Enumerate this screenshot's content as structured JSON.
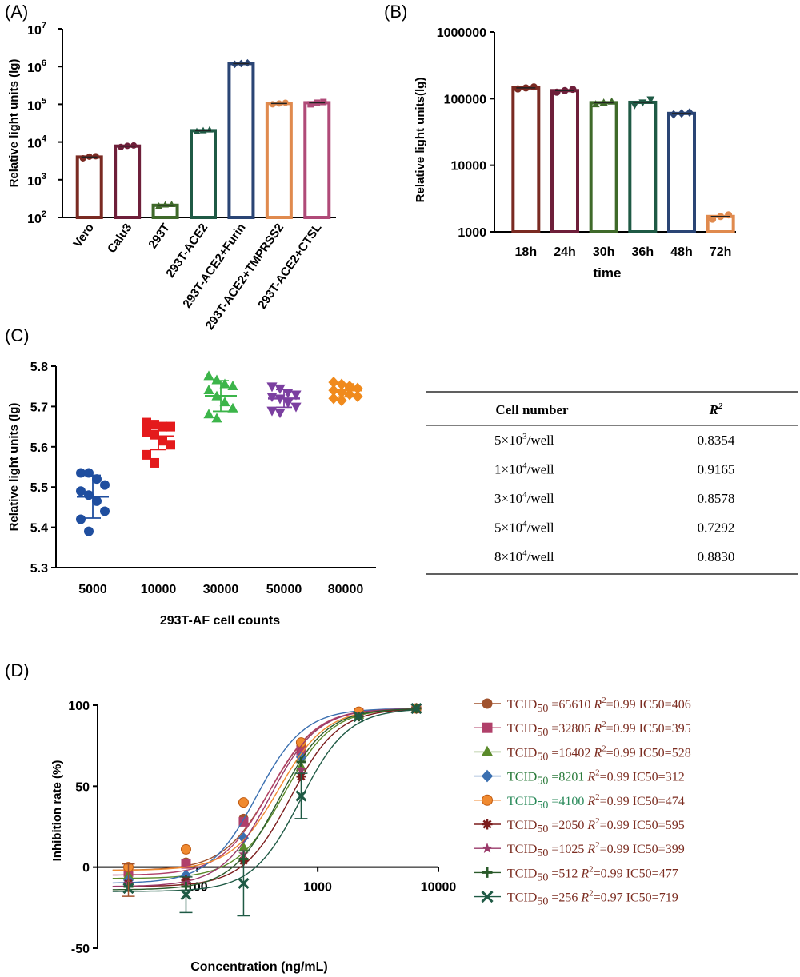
{
  "panels": {
    "a": "(A)",
    "b": "(B)",
    "c": "(C)",
    "d": "(D)"
  },
  "chart_data": [
    {
      "panel": "(A)",
      "type": "bar",
      "ylabel": "Relative light units (lg)",
      "yscale": "log",
      "ylim": [
        100,
        10000000
      ],
      "yticks": [
        {
          "base": "10",
          "exp": "2"
        },
        {
          "base": "10",
          "exp": "3"
        },
        {
          "base": "10",
          "exp": "4"
        },
        {
          "base": "10",
          "exp": "5"
        },
        {
          "base": "10",
          "exp": "6"
        },
        {
          "base": "10",
          "exp": "7"
        }
      ],
      "categories": [
        "Vero",
        "Calu3",
        "293T",
        "293T-ACE2",
        "293T-ACE2+Furin",
        "293T-ACE2+TMPRSS2",
        "293T-ACE2+CTSL"
      ],
      "values": [
        4000,
        7800,
        210,
        20000,
        1200000,
        105000,
        110000
      ],
      "points": [
        [
          3700,
          4100,
          4200
        ],
        [
          7400,
          7900,
          8100
        ],
        [
          200,
          215,
          220
        ],
        [
          19000,
          20000,
          21000
        ],
        [
          1150000,
          1200000,
          1250000
        ],
        [
          100000,
          105000,
          110000
        ],
        [
          100000,
          110000,
          115000
        ]
      ],
      "colors": [
        "#7a2a22",
        "#6e1f3a",
        "#3f6a2a",
        "#1f5a45",
        "#2a4575",
        "#e08a4e",
        "#b04a78"
      ]
    },
    {
      "panel": "(B)",
      "type": "bar",
      "xlabel": "time",
      "ylabel": "Relative light units(lg)",
      "yscale": "log",
      "ylim": [
        1000,
        1000000
      ],
      "yticks": [
        "1000",
        "10000",
        "100000",
        "1000000"
      ],
      "categories": [
        "18h",
        "24h",
        "30h",
        "36h",
        "48h",
        "72h"
      ],
      "values": [
        145000,
        132000,
        87000,
        88000,
        60000,
        1700
      ],
      "points": [
        [
          140000,
          145000,
          150000
        ],
        [
          125000,
          132000,
          138000
        ],
        [
          82000,
          87000,
          90000
        ],
        [
          80000,
          88000,
          98000
        ],
        [
          58000,
          60000,
          62000
        ],
        [
          1550,
          1700,
          1800
        ]
      ],
      "colors": [
        "#7a2a22",
        "#6e1f3a",
        "#3f6a2a",
        "#1f5a45",
        "#2a4575",
        "#e08a4e"
      ]
    },
    {
      "panel": "(C)",
      "type": "scatter",
      "xlabel": "293T-AF cell counts",
      "ylabel": "Relative light units (lg)",
      "ylim": [
        5.3,
        5.8
      ],
      "yticks": [
        "5.3",
        "5.4",
        "5.5",
        "5.6",
        "5.7",
        "5.8"
      ],
      "categories": [
        "5000",
        "10000",
        "30000",
        "50000",
        "80000"
      ],
      "means": [
        5.476,
        5.626,
        5.726,
        5.72,
        5.74
      ],
      "sd": [
        0.053,
        0.033,
        0.038,
        0.022,
        0.016
      ],
      "points": [
        [
          5.535,
          5.535,
          5.52,
          5.505,
          5.49,
          5.48,
          5.465,
          5.44,
          5.42,
          5.39
        ],
        [
          5.66,
          5.655,
          5.65,
          5.65,
          5.64,
          5.63,
          5.615,
          5.605,
          5.58,
          5.56
        ],
        [
          5.775,
          5.765,
          5.755,
          5.75,
          5.74,
          5.725,
          5.71,
          5.695,
          5.68,
          5.67
        ],
        [
          5.75,
          5.745,
          5.735,
          5.73,
          5.725,
          5.72,
          5.71,
          5.7,
          5.69,
          5.685
        ],
        [
          5.76,
          5.755,
          5.75,
          5.745,
          5.74,
          5.735,
          5.73,
          5.725,
          5.72,
          5.715
        ]
      ],
      "colors": [
        "#1f4e9f",
        "#e41a1c",
        "#3cb54a",
        "#7b3fa0",
        "#f08a1c"
      ],
      "markers": [
        "circle",
        "square",
        "triangle-up",
        "triangle-down",
        "diamond"
      ]
    },
    {
      "panel": "(C)",
      "type": "table",
      "headers": [
        "Cell number",
        "R"
      ],
      "header_sup": "2",
      "rows": [
        {
          "mant": "5×10",
          "exp": "3",
          "unit": "/well",
          "r2": "0.8354"
        },
        {
          "mant": "1×10",
          "exp": "4",
          "unit": "/well",
          "r2": "0.9165"
        },
        {
          "mant": "3×10",
          "exp": "4",
          "unit": "/well",
          "r2": "0.8578"
        },
        {
          "mant": "5×10",
          "exp": "4",
          "unit": "/well",
          "r2": "0.7292"
        },
        {
          "mant": "8×10",
          "exp": "4",
          "unit": "/well",
          "r2": "0.8830"
        }
      ]
    },
    {
      "panel": "(D)",
      "type": "line",
      "xlabel": "Concentration (ng/mL)",
      "ylabel": "Inhibition rate (%)",
      "xscale": "log",
      "xticks": [
        "100",
        "1000",
        "10000"
      ],
      "ylim": [
        -50,
        100
      ],
      "yticks": [
        "-50",
        "0",
        "50",
        "100"
      ],
      "x": [
        27,
        81,
        243,
        729,
        2187,
        6561
      ],
      "series": [
        {
          "tcid": "65610",
          "r2": "0.99",
          "ic50": "406",
          "ic": 406,
          "marker": "circle",
          "color": "#a0522d",
          "text": "#7b2c20",
          "values": [
            0,
            3,
            30,
            75,
            96,
            98
          ]
        },
        {
          "tcid": "32805",
          "r2": "0.99",
          "ic50": "395",
          "ic": 395,
          "marker": "square",
          "color": "#b0406a",
          "text": "#7b2c20",
          "values": [
            -3,
            2,
            28,
            72,
            95,
            98
          ]
        },
        {
          "tcid": "16402",
          "r2": "0.99",
          "ic50": "528",
          "ic": 528,
          "marker": "triangle",
          "color": "#5a8a2a",
          "text": "#7b2c20",
          "values": [
            -5,
            -8,
            12,
            62,
            94,
            98
          ]
        },
        {
          "tcid": "8201",
          "r2": "0.99",
          "ic50": "312",
          "ic": 312,
          "marker": "diamond",
          "color": "#3a6fb0",
          "text": "#2a7a3a",
          "values": [
            -8,
            -5,
            18,
            68,
            95,
            98
          ]
        },
        {
          "tcid": "4100",
          "r2": "0.99",
          "ic50": "474",
          "ic": 474,
          "marker": "circle-orange",
          "color": "#f08a30",
          "text": "#2a8a5a",
          "values": [
            0,
            11,
            40,
            77,
            96,
            98
          ]
        },
        {
          "tcid": "2050",
          "r2": "0.99",
          "ic50": "595",
          "ic": 595,
          "marker": "asterisk",
          "color": "#7b1c1c",
          "text": "#7b2c20",
          "values": [
            -10,
            -8,
            4,
            56,
            93,
            98
          ]
        },
        {
          "tcid": "1025",
          "r2": "0.99",
          "ic50": "399",
          "ic": 399,
          "marker": "star",
          "color": "#9a3a6a",
          "text": "#7b2c20",
          "values": [
            -10,
            -10,
            8,
            60,
            93,
            98
          ]
        },
        {
          "tcid": "512",
          "r2": "0.99",
          "ic50": "477",
          "ic": 477,
          "marker": "plus",
          "color": "#2a5a2a",
          "text": "#7b2c20",
          "values": [
            -12,
            -12,
            5,
            65,
            93,
            98
          ]
        },
        {
          "tcid": "256",
          "r2": "0.97",
          "ic50": "719",
          "ic": 719,
          "marker": "cross",
          "color": "#1f5a45",
          "text": "#7b2c20",
          "values": [
            -13,
            -17,
            -10,
            44,
            93,
            98
          ]
        }
      ],
      "legend_labels": {
        "tcid": "TCID",
        "sub": "50",
        "r": "R",
        "sup": "2",
        "ic": "IC50="
      },
      "errbars": [
        {
          "series": 8,
          "x_index": 1,
          "lo": -28,
          "hi": -6
        },
        {
          "series": 8,
          "x_index": 2,
          "lo": -30,
          "hi": 10
        },
        {
          "series": 8,
          "x_index": 3,
          "lo": 30,
          "hi": 58
        },
        {
          "series": 0,
          "x_index": 0,
          "lo": -18,
          "hi": 2
        }
      ]
    }
  ]
}
